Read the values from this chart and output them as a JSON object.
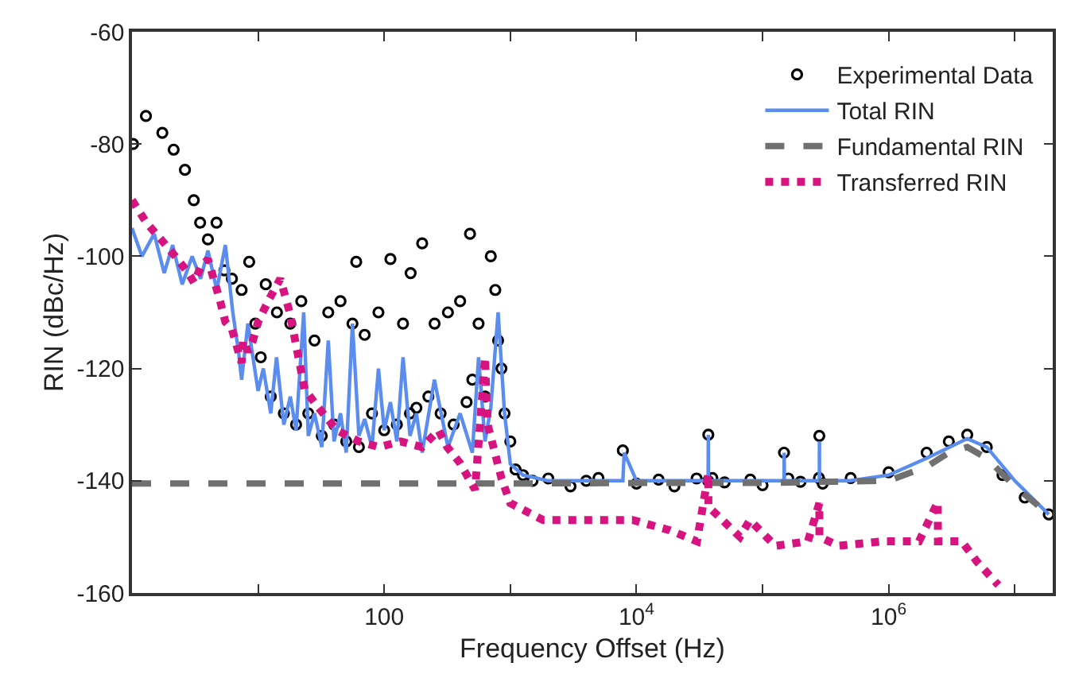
{
  "chart_data": {
    "type": "line",
    "xlabel": "Frequency Offset (Hz)",
    "ylabel": "RIN (dBc/Hz)",
    "log": "x",
    "legend": "top right",
    "xlim": [
      1,
      20000000
    ],
    "ylim": [
      -160,
      -60
    ],
    "xticks": [
      {
        "value": 10,
        "label": null
      },
      {
        "value": 100,
        "label": "100"
      },
      {
        "value": 1000,
        "label": null
      },
      {
        "value": 10000,
        "label": "10$^{4}$"
      },
      {
        "value": 100000,
        "label": null
      },
      {
        "value": 1000000,
        "label": "10$^{6}$"
      },
      {
        "value": 10000000,
        "label": null
      }
    ],
    "yticks": [
      -160,
      -140,
      -120,
      -100,
      -80,
      -60
    ],
    "series": [
      {
        "name": "Experimental Data",
        "type": "scatter",
        "marker": "circle",
        "color": "#000000",
        "x": [
          1.02,
          1.29,
          1.74,
          2.14,
          2.63,
          3.09,
          3.47,
          4.0,
          4.68,
          5.4,
          6.2,
          7.4,
          8.5,
          9.5,
          10.5,
          11.5,
          12.6,
          14.1,
          16,
          18,
          20,
          22,
          25,
          28,
          32,
          36,
          40,
          45,
          50,
          56,
          60,
          63,
          70,
          80,
          90,
          100,
          112,
          126,
          141,
          160,
          162,
          180,
          200,
          224,
          251,
          280,
          320,
          355,
          400,
          450,
          479,
          500,
          560,
          630,
          700,
          760,
          800,
          850,
          900,
          1000,
          1100,
          1260,
          1500,
          2000,
          3000,
          4000,
          5000,
          7800,
          10000,
          15000,
          20000,
          30000,
          37000,
          37150,
          40000,
          50000,
          80000,
          100000,
          148000,
          160000,
          200000,
          280000,
          282000,
          300000,
          500000,
          1000000,
          2000000,
          3000000,
          4200000,
          6000000,
          8000000,
          12000000,
          18600000
        ],
        "values": [
          -80,
          -75,
          -78,
          -81,
          -84.6,
          -90,
          -94,
          -97,
          -94,
          -102.5,
          -104,
          -106,
          -101,
          -112,
          -118,
          -105,
          -125,
          -110,
          -128,
          -112,
          -130,
          -108,
          -128,
          -115,
          -132,
          -110,
          -130,
          -108,
          -133,
          -112,
          -101,
          -134,
          -114,
          -128,
          -110,
          -131,
          -100.5,
          -130,
          -112,
          -128,
          -103,
          -127,
          -97.7,
          -125,
          -112,
          -128,
          -110,
          -130,
          -108,
          -126,
          -96,
          -122,
          -112,
          -125,
          -100,
          -106,
          -115,
          -120,
          -128,
          -133,
          -138,
          -139,
          -140,
          -139.6,
          -141,
          -140,
          -139.5,
          -134.6,
          -140.5,
          -139.8,
          -141,
          -139.6,
          -140,
          -131.8,
          -139.5,
          -140.3,
          -139.8,
          -140.8,
          -135,
          -139.6,
          -140.2,
          -139.5,
          -132,
          -140.5,
          -139.5,
          -138.5,
          -135,
          -133,
          -131.8,
          -134,
          -139,
          -143,
          -146
        ]
      },
      {
        "name": "Total RIN",
        "color": "#5b8def",
        "x": [
          1,
          1.2,
          1.5,
          1.8,
          2.1,
          2.5,
          3,
          3.5,
          4,
          4.7,
          5.5,
          6.3,
          7,
          7.4,
          8.3,
          9.1,
          10,
          11,
          12.6,
          14,
          16,
          18,
          20,
          23,
          25,
          28,
          32,
          36,
          40,
          45,
          50,
          56,
          63,
          70,
          80,
          90,
          100,
          112,
          126,
          141,
          160,
          180,
          200,
          250,
          320,
          400,
          500,
          560,
          630,
          700,
          800,
          900,
          1000,
          1260,
          2000,
          5000,
          7800,
          8000,
          10000,
          20000,
          37000,
          37150,
          37300,
          50000,
          100000,
          148000,
          148500,
          149000,
          282000,
          282500,
          283000,
          500000,
          1000000,
          2000000,
          4200000,
          6000000,
          10000000,
          18600000
        ],
        "values": [
          -95,
          -100,
          -96,
          -103,
          -98,
          -105,
          -100,
          -104,
          -99,
          -106,
          -98,
          -110,
          -117,
          -122,
          -112,
          -118,
          -124,
          -120,
          -128,
          -118,
          -130,
          -125,
          -131,
          -110,
          -132,
          -128,
          -134,
          -115,
          -133,
          -128,
          -135,
          -112,
          -132,
          -129,
          -134,
          -120,
          -131,
          -126,
          -133,
          -118,
          -132,
          -128,
          -135,
          -122,
          -134,
          -128,
          -135,
          -118,
          -133,
          -127,
          -110,
          -128,
          -137,
          -139,
          -140,
          -140,
          -140,
          -135,
          -140,
          -140,
          -140,
          -131.8,
          -140,
          -140,
          -140,
          -140,
          -135,
          -140,
          -140,
          -133,
          -140,
          -140,
          -139,
          -136,
          -132.5,
          -134,
          -140,
          -146
        ]
      },
      {
        "name": "Fundamental RIN",
        "line_style": "dashed",
        "color": "#707070",
        "x": [
          1,
          10,
          100,
          1000,
          10000,
          100000,
          1000000,
          2000000,
          3000000,
          4200000,
          6000000,
          10000000,
          18600000
        ],
        "values": [
          -140.5,
          -140.5,
          -140.5,
          -140.5,
          -140.4,
          -140.4,
          -140,
          -137.5,
          -135,
          -134,
          -136,
          -141,
          -146
        ]
      },
      {
        "name": "Transferred RIN",
        "line_style": "dotted",
        "color": "#d6137f",
        "x": [
          1,
          1.3,
          1.7,
          2.2,
          2.8,
          3.1,
          3.5,
          4.0,
          5.0,
          5.5,
          6.2,
          7.4,
          7.6,
          8.3,
          9.1,
          10,
          12,
          15,
          17.8,
          23.4,
          29,
          42,
          63,
          91,
          135,
          200,
          269,
          316,
          398,
          525,
          631,
          646,
          661,
          851,
          1000,
          1820,
          2400,
          4370,
          9330,
          18200,
          30200,
          37150,
          37200,
          66100,
          79400,
          126000,
          229000,
          282000,
          282500,
          398000,
          891000,
          1740000,
          2450000,
          2460000,
          3800000,
          5010000,
          7410000
        ],
        "values": [
          -90,
          -94,
          -97,
          -100,
          -103,
          -104.7,
          -102,
          -100.5,
          -108,
          -111.7,
          -113,
          -119,
          -115,
          -117,
          -115,
          -111.7,
          -108,
          -104,
          -110,
          -123.7,
          -126.5,
          -131,
          -133,
          -134,
          -133,
          -134,
          -131,
          -134,
          -136.8,
          -141.6,
          -118,
          -125.6,
          -130,
          -139.6,
          -144,
          -147,
          -147,
          -147,
          -147,
          -148.8,
          -150.8,
          -138.8,
          -144.6,
          -150,
          -147,
          -151.6,
          -150.8,
          -144,
          -150,
          -151.6,
          -150.8,
          -150.8,
          -143.8,
          -150.8,
          -150.8,
          -154.4,
          -158.6
        ]
      }
    ]
  }
}
